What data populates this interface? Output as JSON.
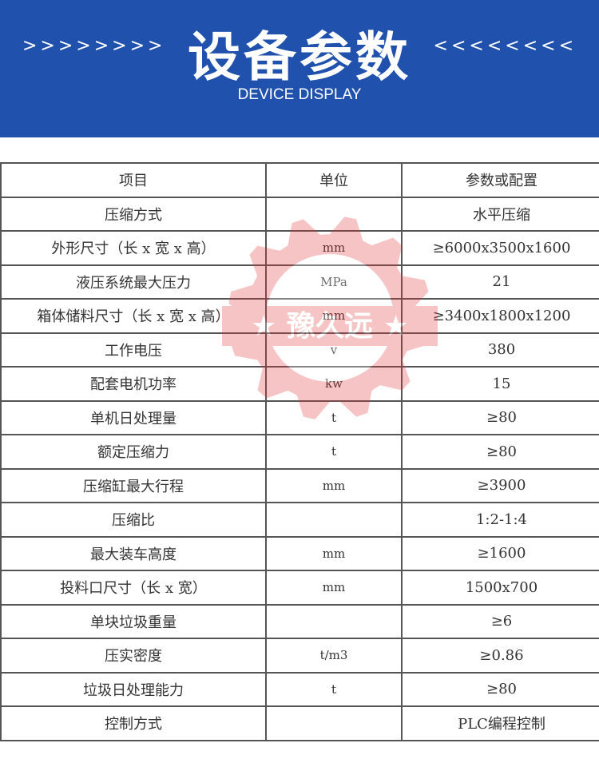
{
  "banner": {
    "title": "设备参数",
    "subtitle": "DEVICE DISPLAY",
    "left_arrows": ">>>>>>>>",
    "right_arrows": "<<<<<<<<",
    "color": "#2052ad"
  },
  "watermark": {
    "text": "豫久远",
    "color": "#e03030"
  },
  "table": {
    "headers": [
      "项目",
      "单位",
      "参数或配置"
    ],
    "rows": [
      [
        "压缩方式",
        "",
        "水平压缩"
      ],
      [
        "外形尺寸（长 x 宽 x 高）",
        "mm",
        "≥6000x3500x1600"
      ],
      [
        "液压系统最大压力",
        "MPa",
        "21"
      ],
      [
        "箱体储料尺寸（长 x 宽 x 高）",
        "mm",
        "≥3400x1800x1200"
      ],
      [
        "工作电压",
        "v",
        "380"
      ],
      [
        "配套电机功率",
        "kw",
        "15"
      ],
      [
        "单机日处理量",
        "t",
        "≥80"
      ],
      [
        "额定压缩力",
        "t",
        "≥80"
      ],
      [
        "压缩缸最大行程",
        "mm",
        "≥3900"
      ],
      [
        "压缩比",
        "",
        "1:2-1:4"
      ],
      [
        "最大装车高度",
        "mm",
        "≥1600"
      ],
      [
        "投料口尺寸（长 x 宽）",
        "mm",
        "1500x700"
      ],
      [
        "单块垃圾重量",
        "",
        "≥6"
      ],
      [
        "压实密度",
        "t/m3",
        "≥0.86"
      ],
      [
        "垃圾日处理能力",
        "t",
        "≥80"
      ],
      [
        "控制方式",
        "",
        "PLC编程控制"
      ]
    ]
  }
}
